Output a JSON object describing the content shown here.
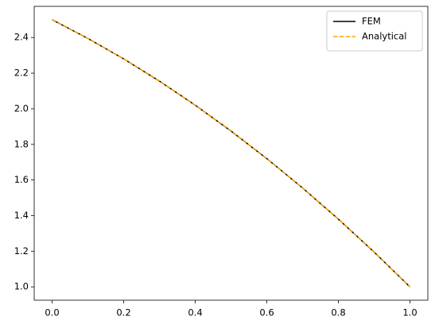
{
  "chart_data": {
    "type": "line",
    "x": [
      0.0,
      0.1,
      0.2,
      0.3,
      0.4,
      0.5,
      0.6,
      0.7,
      0.8,
      0.9,
      1.0
    ],
    "series": [
      {
        "name": "FEM",
        "color": "#000000",
        "dash": "solid",
        "values": [
          2.5,
          2.395,
          2.28,
          2.155,
          2.02,
          1.875,
          1.72,
          1.555,
          1.38,
          1.195,
          1.0
        ]
      },
      {
        "name": "Analytical",
        "color": "#ffa500",
        "dash": "dashed",
        "values": [
          2.5,
          2.395,
          2.28,
          2.155,
          2.02,
          1.875,
          1.72,
          1.555,
          1.38,
          1.195,
          1.0
        ]
      }
    ],
    "xlim": [
      -0.05,
      1.05
    ],
    "xticks": [
      {
        "value": 0,
        "label": "0.0"
      },
      0.2,
      0.4,
      0.6,
      0.8,
      {
        "value": 1,
        "label": "1.0"
      }
    ],
    "ylim": [
      0.925,
      2.575
    ],
    "yticks": [
      {
        "value": 1,
        "label": "1.0"
      },
      1.2,
      1.4,
      1.6,
      1.8,
      {
        "value": 2,
        "label": "2.0"
      },
      2.2,
      2.4
    ],
    "grid": false,
    "legend": "upper-right"
  }
}
